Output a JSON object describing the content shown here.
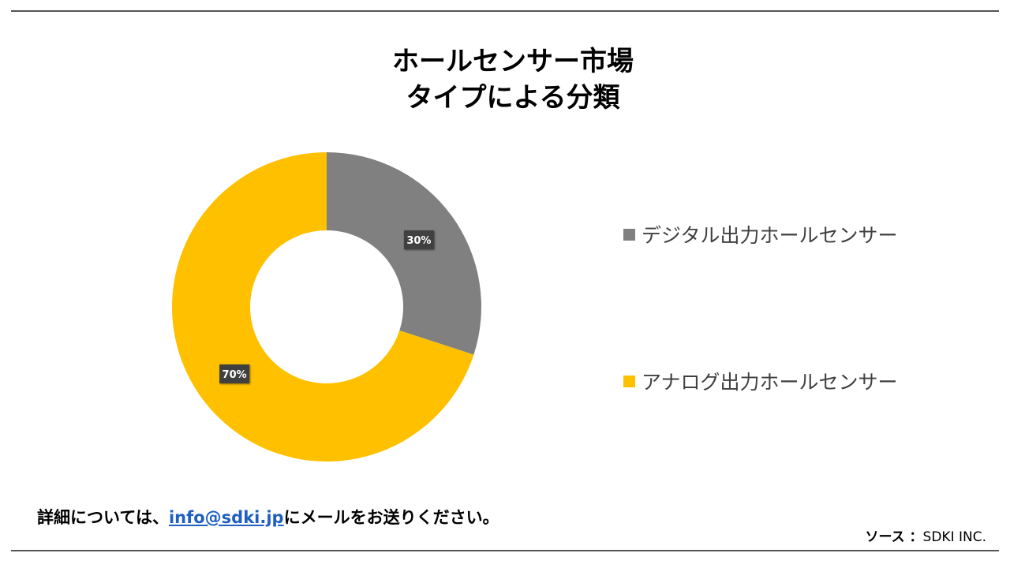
{
  "title": {
    "line1": "ホールセンサー市場",
    "line2": "タイプによる分類"
  },
  "chart_data": {
    "type": "pie",
    "donut": true,
    "categories": [
      "デジタル出力ホールセンサー",
      "アナログ出力ホールセンサー"
    ],
    "values": [
      30,
      70
    ],
    "labels": [
      "30%",
      "70%"
    ],
    "colors": [
      "#808080",
      "#FFC000"
    ],
    "legend_position": "right"
  },
  "footer": {
    "prefix": "詳細については、",
    "email": "info@sdki.jp",
    "suffix": "にメールをお送りください。",
    "source_label": "ソース ：",
    "source_value": "SDKI INC."
  }
}
